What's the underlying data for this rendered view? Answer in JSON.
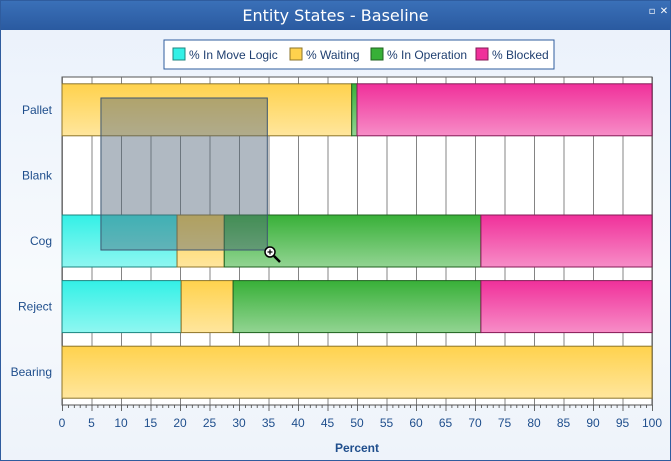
{
  "window": {
    "title": "Entity States - Baseline",
    "restore_icon": "restore-icon",
    "close_icon": "close-icon"
  },
  "chart_data": {
    "type": "bar",
    "orientation": "horizontal",
    "stacked": true,
    "categories": [
      "Pallet",
      "Blank",
      "Cog",
      "Reject",
      "Bearing"
    ],
    "series": [
      {
        "name": "% In Move Logic",
        "color": "#33f0e6",
        "values": [
          0,
          0,
          19.5,
          20.2,
          0
        ]
      },
      {
        "name": "% Waiting",
        "color": "#ffd24d",
        "values": [
          49.1,
          0,
          8.0,
          8.8,
          100
        ]
      },
      {
        "name": "% In Operation",
        "color": "#38b038",
        "values": [
          0.9,
          0,
          43.5,
          42.0,
          0
        ]
      },
      {
        "name": "% Blocked",
        "color": "#f0309a",
        "values": [
          50.0,
          0,
          29.0,
          29.0,
          0
        ]
      }
    ],
    "xlabel": "Percent",
    "xlim": [
      0,
      100
    ],
    "xticks": [
      0,
      5,
      10,
      15,
      20,
      25,
      30,
      35,
      40,
      45,
      50,
      55,
      60,
      65,
      70,
      75,
      80,
      85,
      90,
      95,
      100
    ],
    "grid": true,
    "legend_position": "top-center",
    "zoom_selection": {
      "x_range": [
        6.6,
        34.8
      ]
    },
    "cursor_icon": "zoom-magnifier-icon"
  }
}
